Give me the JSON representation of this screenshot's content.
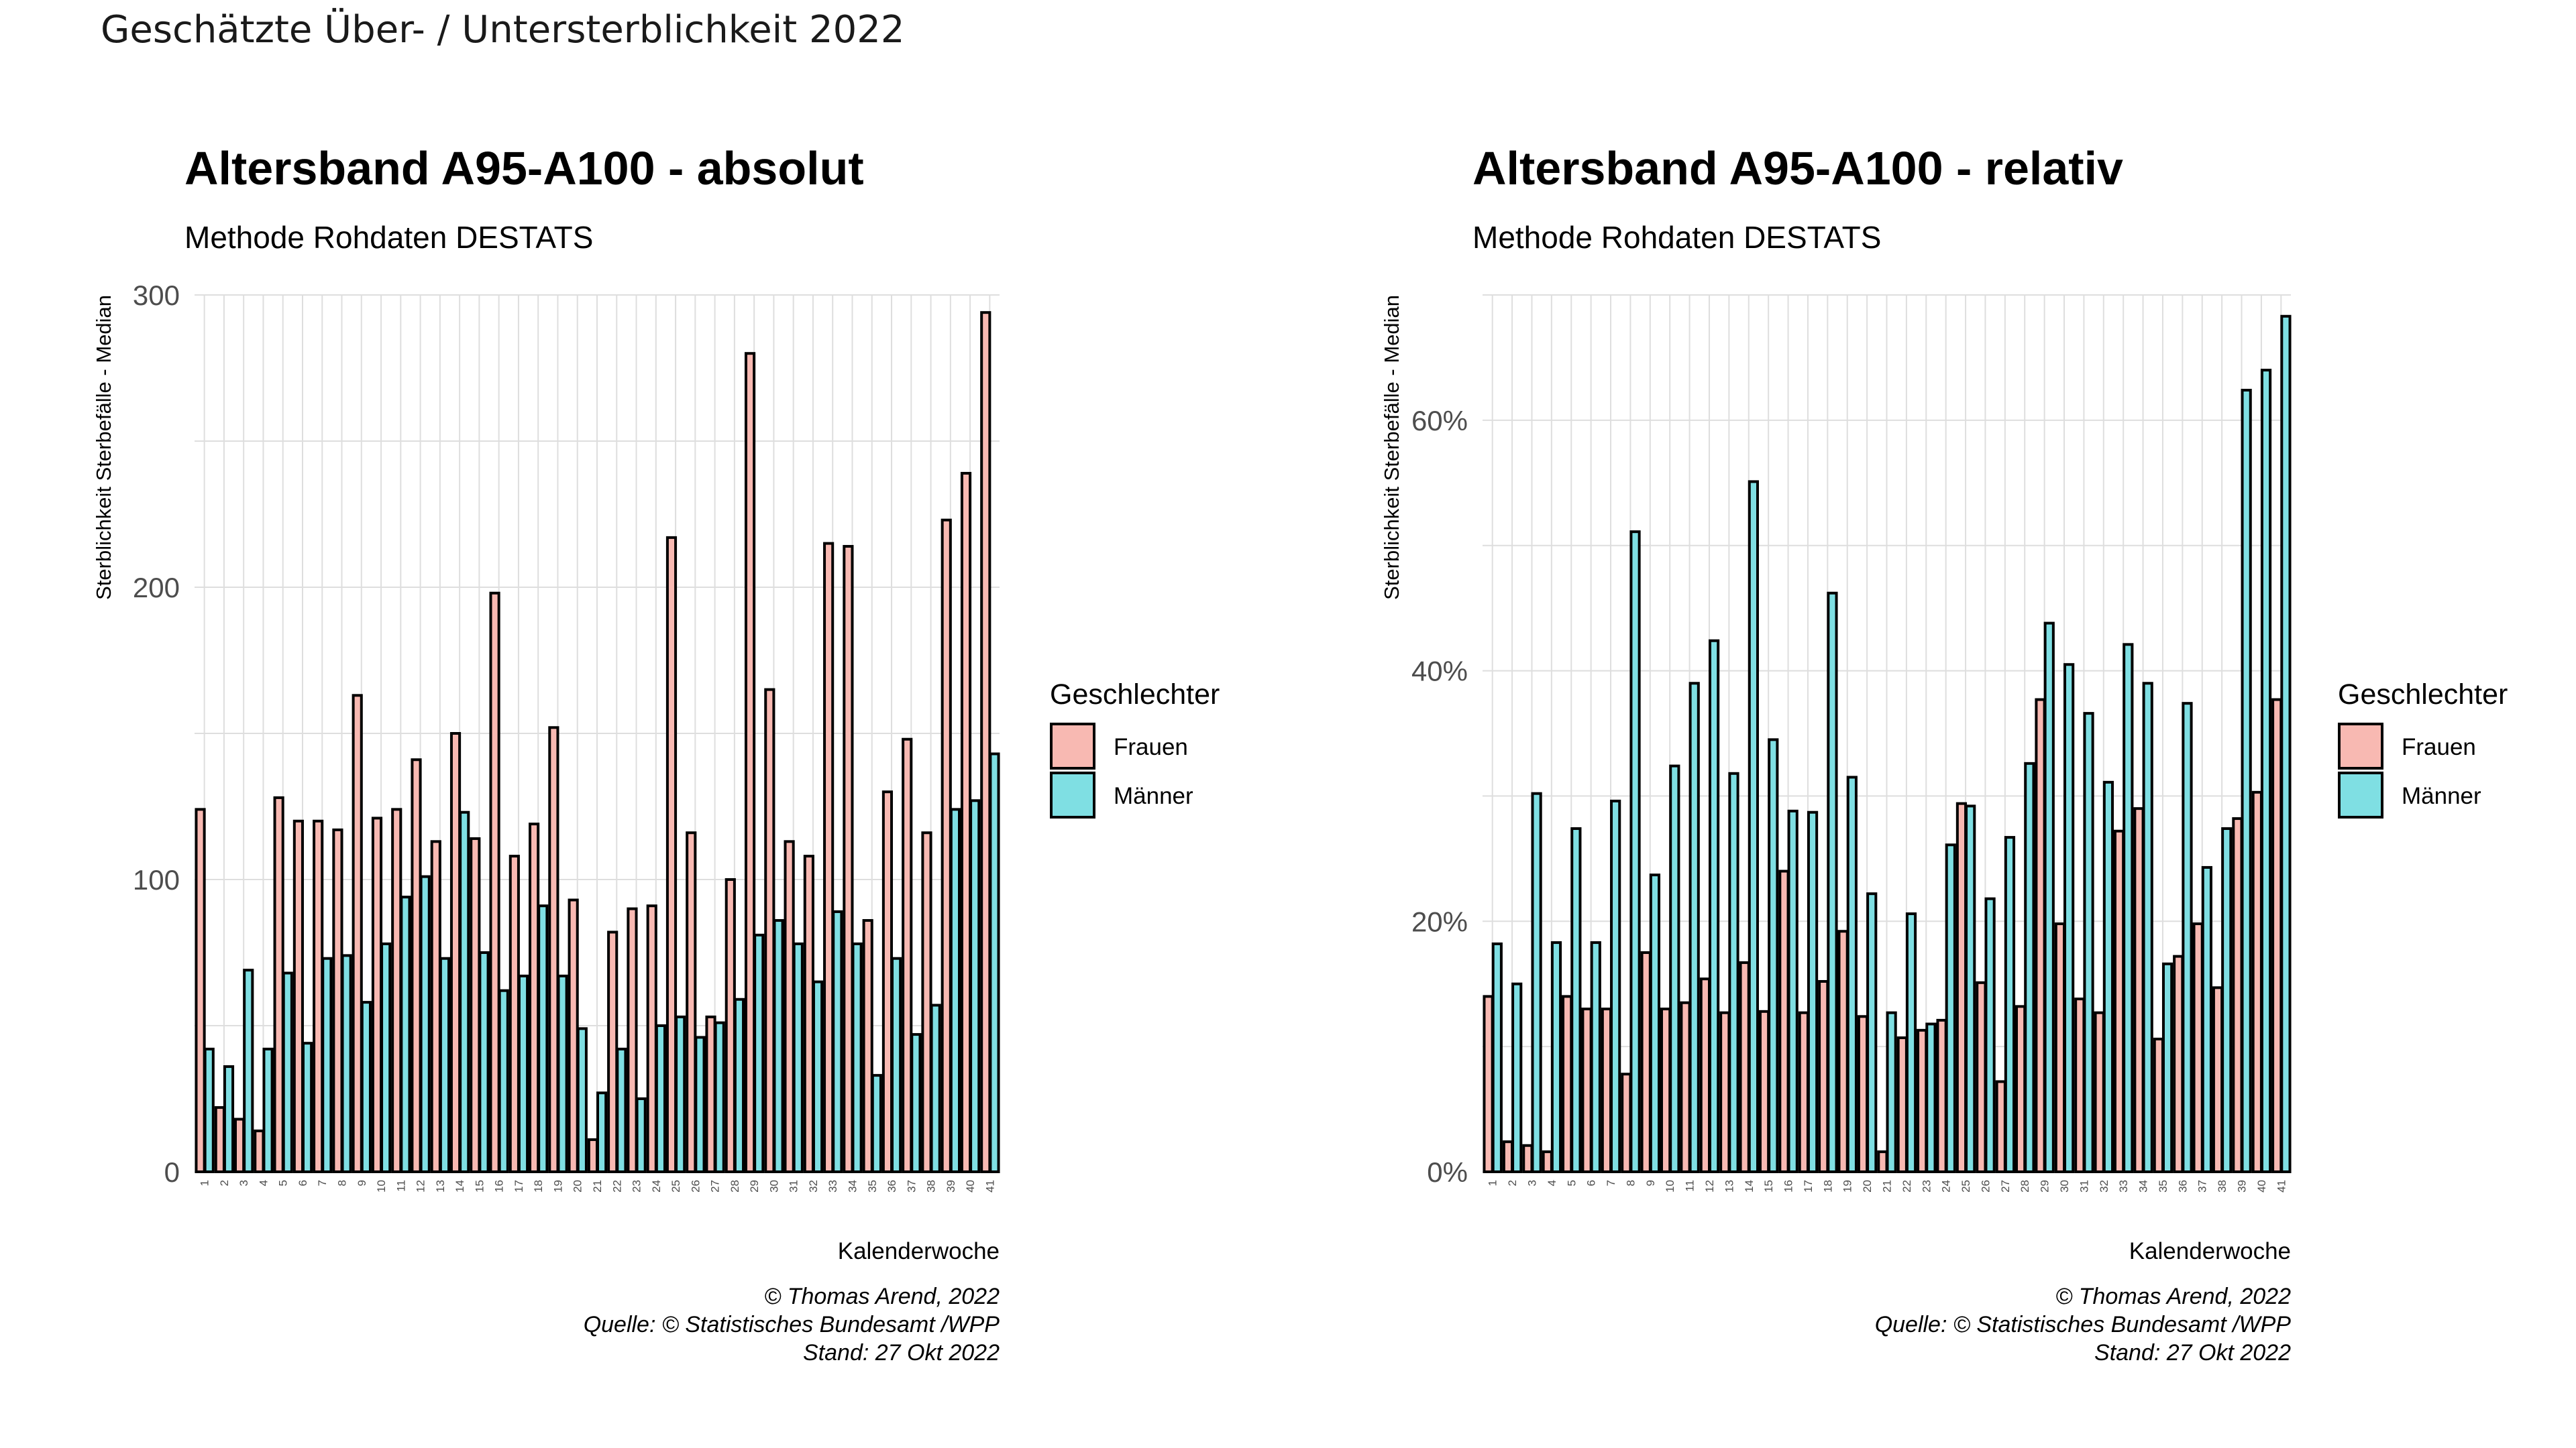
{
  "page_title": "Geschätzte Über- / Untersterblichkeit 2022",
  "colors": {
    "frauen": "#F8B9B2",
    "maenner": "#7FDFE3",
    "outline": "#000000",
    "grid": "#DEDEDE"
  },
  "legend": {
    "title": "Geschlechter",
    "items": [
      "Frauen",
      "Männer"
    ]
  },
  "chart_data": [
    {
      "type": "bar",
      "title": "Altersband A95-A100 - absolut",
      "subtitle": "Methode Rohdaten DESTATS",
      "xlabel": "Kalenderwoche",
      "ylabel": "Sterblichkeit Sterbefälle - Median",
      "ylim": [
        0,
        300
      ],
      "yticks": [
        0,
        100,
        200,
        300
      ],
      "ytick_labels": [
        "0",
        "100",
        "200",
        "300"
      ],
      "grid": true,
      "legend_position": "right",
      "categories": [
        "1",
        "2",
        "3",
        "4",
        "5",
        "6",
        "7",
        "8",
        "9",
        "10",
        "11",
        "12",
        "13",
        "14",
        "15",
        "16",
        "17",
        "18",
        "19",
        "20",
        "21",
        "22",
        "23",
        "24",
        "25",
        "26",
        "27",
        "28",
        "29",
        "30",
        "31",
        "32",
        "33",
        "34",
        "35",
        "36",
        "37",
        "38",
        "39",
        "40",
        "41"
      ],
      "series": [
        {
          "name": "Frauen",
          "values": [
            124,
            22,
            18,
            14,
            128,
            120,
            120,
            117,
            163,
            121,
            124,
            141,
            113,
            150,
            114,
            198,
            108,
            119,
            152,
            93,
            11,
            82,
            90,
            91,
            217,
            116,
            53,
            100,
            280,
            165,
            113,
            108,
            215,
            214,
            86,
            130,
            148,
            116,
            223,
            239,
            294
          ]
        },
        {
          "name": "Männer",
          "values": [
            42,
            36,
            69,
            42,
            68,
            44,
            73,
            74,
            58,
            78,
            94,
            101,
            73,
            123,
            75,
            62,
            67,
            91,
            67,
            49,
            27,
            42,
            25,
            50,
            53,
            46,
            51,
            59,
            81,
            86,
            78,
            65,
            89,
            78,
            33,
            73,
            47,
            57,
            124,
            127,
            143
          ]
        }
      ],
      "caption": [
        "© Thomas Arend, 2022",
        "Quelle: © Statistisches Bundesamt /WPP",
        "Stand: 27 Okt 2022"
      ]
    },
    {
      "type": "bar",
      "title": "Altersband A95-A100 - relativ",
      "subtitle": "Methode Rohdaten DESTATS",
      "xlabel": "Kalenderwoche",
      "ylabel": "Sterblichkeit Sterbefälle - Median",
      "ylim": [
        0,
        0.7
      ],
      "yticks": [
        0,
        0.2,
        0.4,
        0.6
      ],
      "ytick_labels": [
        "0%",
        "20%",
        "40%",
        "60%"
      ],
      "grid": true,
      "legend_position": "right",
      "categories": [
        "1",
        "2",
        "3",
        "4",
        "5",
        "6",
        "7",
        "8",
        "9",
        "10",
        "11",
        "12",
        "13",
        "14",
        "15",
        "16",
        "17",
        "18",
        "19",
        "20",
        "21",
        "22",
        "23",
        "24",
        "25",
        "26",
        "27",
        "28",
        "29",
        "30",
        "31",
        "32",
        "33",
        "34",
        "35",
        "36",
        "37",
        "38",
        "39",
        "40",
        "41"
      ],
      "series": [
        {
          "name": "Frauen",
          "values": [
            0.14,
            0.024,
            0.021,
            0.016,
            0.14,
            0.13,
            0.13,
            0.078,
            0.175,
            0.13,
            0.135,
            0.154,
            0.127,
            0.167,
            0.128,
            0.24,
            0.127,
            0.152,
            0.192,
            0.124,
            0.016,
            0.107,
            0.113,
            0.121,
            0.294,
            0.151,
            0.072,
            0.132,
            0.377,
            0.198,
            0.138,
            0.127,
            0.272,
            0.29,
            0.106,
            0.172,
            0.198,
            0.147,
            0.282,
            0.303,
            0.377
          ]
        },
        {
          "name": "Männer",
          "values": [
            0.182,
            0.15,
            0.302,
            0.183,
            0.274,
            0.183,
            0.296,
            0.511,
            0.237,
            0.324,
            0.39,
            0.424,
            0.318,
            0.551,
            0.345,
            0.288,
            0.287,
            0.462,
            0.315,
            0.222,
            0.127,
            0.206,
            0.118,
            0.261,
            0.292,
            0.218,
            0.267,
            0.326,
            0.438,
            0.405,
            0.366,
            0.311,
            0.421,
            0.39,
            0.166,
            0.374,
            0.243,
            0.274,
            0.624,
            0.64,
            0.683
          ]
        }
      ],
      "caption": [
        "© Thomas Arend, 2022",
        "Quelle: © Statistisches Bundesamt /WPP",
        "Stand: 27 Okt 2022"
      ]
    }
  ]
}
